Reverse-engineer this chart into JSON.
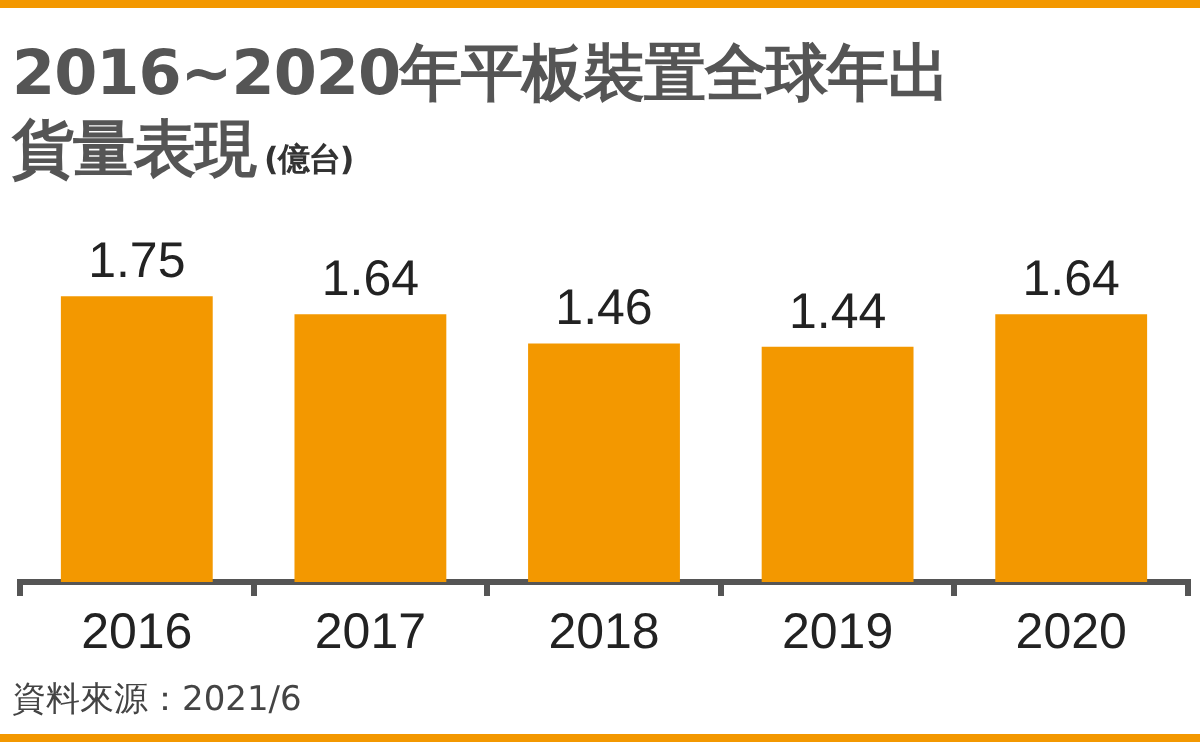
{
  "chart_data": {
    "type": "bar",
    "title": "2016~2020年平板裝置全球年出貨量表現",
    "subtitle": "(億台)",
    "categories": [
      "2016",
      "2017",
      "2018",
      "2019",
      "2020"
    ],
    "values": [
      1.75,
      1.64,
      1.46,
      1.44,
      1.64
    ],
    "color": "#f39800",
    "data_labels": true,
    "grid": false,
    "legend": false,
    "annotations": [
      "資料來源：2021/6"
    ]
  }
}
